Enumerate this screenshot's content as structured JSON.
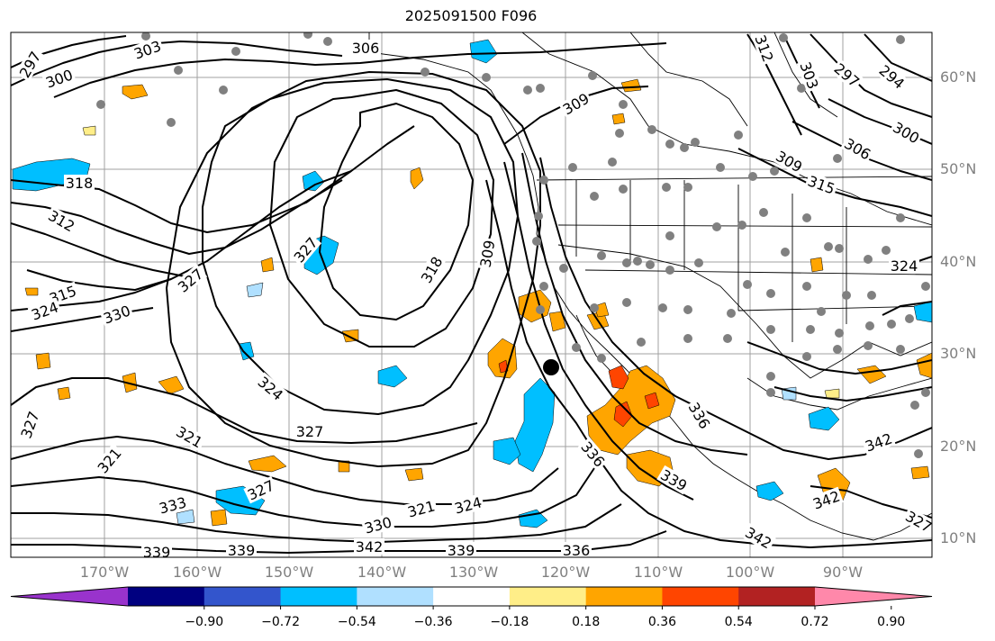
{
  "title": "2025091500 F096",
  "map": {
    "lon_labels": [
      "170°W",
      "160°W",
      "150°W",
      "140°W",
      "130°W",
      "120°W",
      "110°W",
      "100°W",
      "90°W"
    ],
    "lat_labels": [
      "60°N",
      "50°N",
      "40°N",
      "30°N",
      "20°N",
      "10°N"
    ],
    "contour_labels": [
      "297",
      "300",
      "303",
      "306",
      "309",
      "312",
      "303",
      "297",
      "294",
      "300",
      "306",
      "309",
      "315",
      "318",
      "312",
      "327",
      "318",
      "309",
      "315",
      "324",
      "330",
      "327",
      "324",
      "327",
      "321",
      "324",
      "321",
      "327",
      "333",
      "330",
      "321",
      "324",
      "339",
      "339",
      "342",
      "339",
      "336",
      "336",
      "336",
      "342",
      "339",
      "342",
      "342",
      "327",
      "327"
    ],
    "marker": "filled-black-dot"
  },
  "colorbar": {
    "ticks": [
      "−0.90",
      "−0.72",
      "−0.54",
      "−0.36",
      "−0.18",
      "0.18",
      "0.36",
      "0.54",
      "0.72",
      "0.90"
    ],
    "colors": [
      "#9933cc",
      "#000080",
      "#3355cc",
      "#00bfff",
      "#b0e0ff",
      "#ffffff",
      "#ffee88",
      "#ffa500",
      "#ff4500",
      "#b22222",
      "#ff88aa"
    ]
  }
}
